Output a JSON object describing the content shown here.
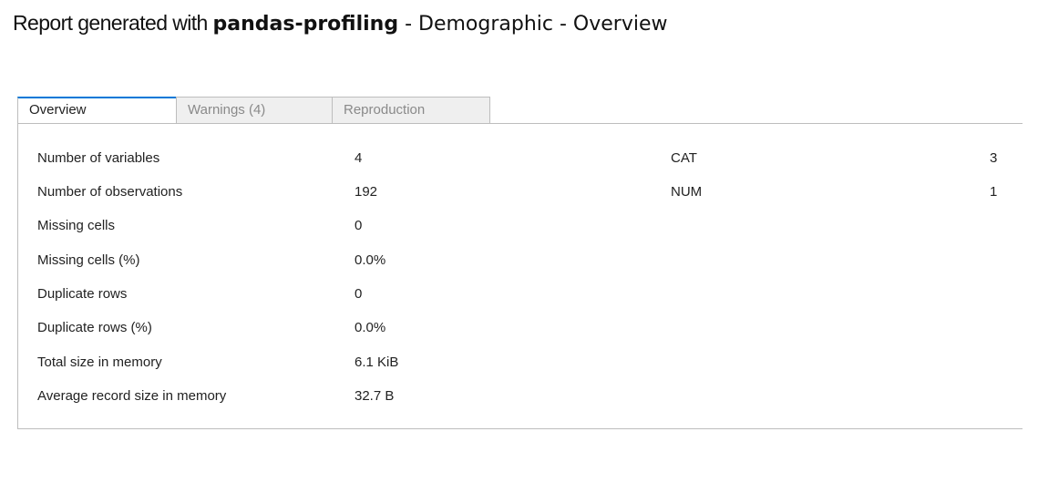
{
  "header": {
    "prefix": "Report generated with ",
    "brand": "pandas-profiling",
    "suffix": " - Demographic - Overview"
  },
  "tabs": [
    {
      "label": "Overview",
      "active": true
    },
    {
      "label": "Warnings (4)",
      "active": false
    },
    {
      "label": "Reproduction",
      "active": false
    }
  ],
  "dataset_statistics": [
    {
      "label": "Number of variables",
      "value": "4"
    },
    {
      "label": "Number of observations",
      "value": "192"
    },
    {
      "label": "Missing cells",
      "value": "0"
    },
    {
      "label": "Missing cells (%)",
      "value": "0.0%"
    },
    {
      "label": "Duplicate rows",
      "value": "0"
    },
    {
      "label": "Duplicate rows (%)",
      "value": "0.0%"
    },
    {
      "label": "Total size in memory",
      "value": "6.1 KiB"
    },
    {
      "label": "Average record size in memory",
      "value": "32.7 B"
    }
  ],
  "variable_types": [
    {
      "type": "CAT",
      "count": "3"
    },
    {
      "type": "NUM",
      "count": "1"
    }
  ],
  "colors": {
    "active_tab_accent": "#0078d7",
    "inactive_tab_bg": "#efefef",
    "border": "#bdbdbd"
  }
}
